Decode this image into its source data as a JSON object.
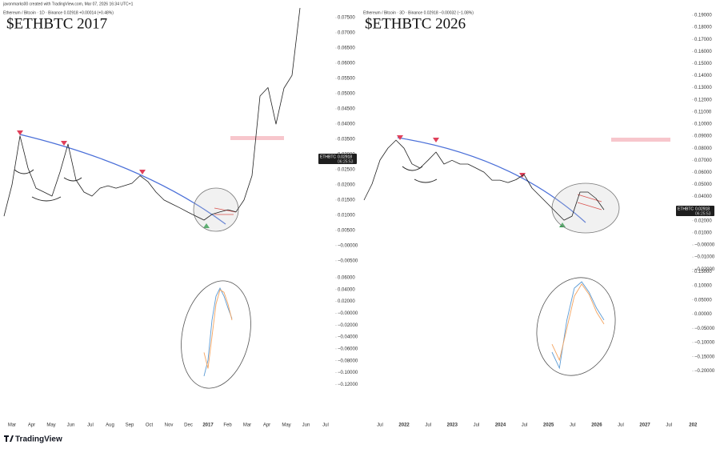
{
  "header": {
    "author_line": "javonmarks00 created with TradingView.com, Mar 07, 2026 16:34 UTC+1",
    "brand": "TradingView"
  },
  "chart_data": [
    {
      "type": "line",
      "title": "$ETHBTC 2017",
      "subtitle": "Ethereum / Bitcoin · 1D · Binance  0.02918  +0.00014 (+0.48%)",
      "x_labels": [
        "Mar",
        "Apr",
        "May",
        "Jun",
        "Jul",
        "Aug",
        "Sep",
        "Oct",
        "Nov",
        "Dec",
        "2017",
        "Feb",
        "Mar",
        "Apr",
        "May",
        "Jun",
        "Jul"
      ],
      "color": "#222222",
      "values": [
        0.0097,
        0.02,
        0.0361,
        0.0255,
        0.0189,
        0.0176,
        0.0163,
        0.0242,
        0.0334,
        0.0216,
        0.0176,
        0.0163,
        0.0189,
        0.0197,
        0.0189,
        0.0197,
        0.0205,
        0.023,
        0.021,
        0.0176,
        0.015,
        0.0137,
        0.0124,
        0.011,
        0.0097,
        0.0084,
        0.0103,
        0.0111,
        0.0118,
        0.0111,
        0.015,
        0.023,
        0.0492,
        0.052,
        0.04,
        0.0518,
        0.056,
        0.0782
      ],
      "ylim": [
        -0.0074,
        0.0808
      ],
      "yticks": [
        {
          "value": 0.075,
          "label": "0.07500"
        },
        {
          "value": 0.07,
          "label": "0.07000"
        },
        {
          "value": 0.065,
          "label": "0.06500"
        },
        {
          "value": 0.06,
          "label": "0.06000"
        },
        {
          "value": 0.055,
          "label": "0.05500"
        },
        {
          "value": 0.05,
          "label": "0.05000"
        },
        {
          "value": 0.045,
          "label": "0.04500"
        },
        {
          "value": 0.04,
          "label": "0.04000"
        },
        {
          "value": 0.035,
          "label": "0.03500"
        },
        {
          "value": 0.03,
          "label": "0.03000"
        },
        {
          "value": 0.025,
          "label": "0.02500"
        },
        {
          "value": 0.02,
          "label": "0.02000"
        },
        {
          "value": 0.015,
          "label": "0.01500"
        },
        {
          "value": 0.01,
          "label": "0.01000"
        },
        {
          "value": 0.005,
          "label": "0.00500"
        },
        {
          "value": 0,
          "label": "−0.00000"
        },
        {
          "value": -0.005,
          "label": "−0.00500"
        }
      ],
      "price_tag": {
        "symbol": "ETHBTC",
        "price": "0.02918",
        "countdown": "06:25:53"
      },
      "indicator": {
        "ylim": [
          -0.133,
          0.0695
        ],
        "yticks": [
          {
            "value": 0.06,
            "label": "0.06000"
          },
          {
            "value": 0.04,
            "label": "0.04000"
          },
          {
            "value": 0.02,
            "label": "0.02000"
          },
          {
            "value": 0,
            "label": "−0.00000"
          },
          {
            "value": -0.02,
            "label": "−0.02000"
          },
          {
            "value": -0.04,
            "label": "−0.04000"
          },
          {
            "value": -0.06,
            "label": "−0.06000"
          },
          {
            "value": -0.08,
            "label": "−0.08000"
          },
          {
            "value": -0.1,
            "label": "−0.10000"
          },
          {
            "value": -0.12,
            "label": "−0.12000"
          }
        ],
        "series": [
          {
            "color": "#5b9bd5",
            "values": [
              -0.106,
              -0.079,
              -0.0116,
              0.029,
              0.0425,
              0.029,
              0.009,
              -0.009
            ]
          },
          {
            "color": "#f4a460",
            "values": [
              -0.066,
              -0.093,
              -0.039,
              0.0155,
              0.0397,
              0.0355,
              0.0155,
              -0.0115
            ]
          }
        ]
      }
    },
    {
      "type": "line",
      "title": "$ETHBTC 2026",
      "subtitle": "Ethereum / Bitcoin · 3D · Binance  0.02918  −0.00032 (−1.08%)",
      "x_labels": [
        "Jul",
        "2022",
        "Jul",
        "2023",
        "Jul",
        "2024",
        "Jul",
        "2025",
        "Jul",
        "2026",
        "Jul",
        "2027",
        "Jul",
        "202"
      ],
      "color": "#222222",
      "values": [
        0.0371,
        0.0503,
        0.0702,
        0.0801,
        0.0867,
        0.08,
        0.067,
        0.0636,
        0.07,
        0.0768,
        0.0669,
        0.07,
        0.0669,
        0.0669,
        0.0636,
        0.0602,
        0.0536,
        0.0536,
        0.0516,
        0.054,
        0.0583,
        0.047,
        0.0404,
        0.0338,
        0.0271,
        0.0205,
        0.0238,
        0.0437,
        0.0437,
        0.0384,
        0.0291
      ],
      "ylim": [
        -0.0225,
        0.2026
      ],
      "yticks": [
        {
          "value": 0.19,
          "label": "0.19000"
        },
        {
          "value": 0.18,
          "label": "0.18000"
        },
        {
          "value": 0.17,
          "label": "0.17000"
        },
        {
          "value": 0.16,
          "label": "0.16000"
        },
        {
          "value": 0.15,
          "label": "0.15000"
        },
        {
          "value": 0.14,
          "label": "0.14000"
        },
        {
          "value": 0.13,
          "label": "0.13000"
        },
        {
          "value": 0.12,
          "label": "0.12000"
        },
        {
          "value": 0.11,
          "label": "0.11000"
        },
        {
          "value": 0.1,
          "label": "0.10000"
        },
        {
          "value": 0.09,
          "label": "0.09000"
        },
        {
          "value": 0.08,
          "label": "0.08000"
        },
        {
          "value": 0.07,
          "label": "0.07000"
        },
        {
          "value": 0.06,
          "label": "0.06000"
        },
        {
          "value": 0.05,
          "label": "0.05000"
        },
        {
          "value": 0.04,
          "label": "0.04000"
        },
        {
          "value": 0.03,
          "label": "0.03000"
        },
        {
          "value": 0.02,
          "label": "0.02000"
        },
        {
          "value": 0.01,
          "label": "0.01000"
        },
        {
          "value": 0,
          "label": "−0.00000"
        },
        {
          "value": -0.01,
          "label": "−0.01000"
        },
        {
          "value": -0.02,
          "label": "−0.02000"
        }
      ],
      "price_tag": {
        "symbol": "ETHBTC",
        "price": "0.02918",
        "countdown": "06:25:53"
      },
      "indicator": {
        "ylim": [
          -0.275,
          0.148
        ],
        "yticks": [
          {
            "value": 0.15,
            "label": "0.15000"
          },
          {
            "value": 0.1,
            "label": "0.10000"
          },
          {
            "value": 0.05,
            "label": "0.05000"
          },
          {
            "value": 0,
            "label": "0.00000"
          },
          {
            "value": -0.05,
            "label": "−0.05000"
          },
          {
            "value": -0.1,
            "label": "−0.10000"
          },
          {
            "value": -0.15,
            "label": "−0.15000"
          },
          {
            "value": -0.2,
            "label": "−0.20000"
          }
        ],
        "series": [
          {
            "color": "#5b9bd5",
            "values": [
              -0.134,
              -0.19,
              -0.021,
              0.0915,
              0.114,
              0.077,
              0.021,
              -0.021
            ]
          },
          {
            "color": "#f4a460",
            "values": [
              -0.106,
              -0.162,
              -0.05,
              0.063,
              0.106,
              0.069,
              0.007,
              -0.035
            ]
          }
        ]
      }
    }
  ]
}
